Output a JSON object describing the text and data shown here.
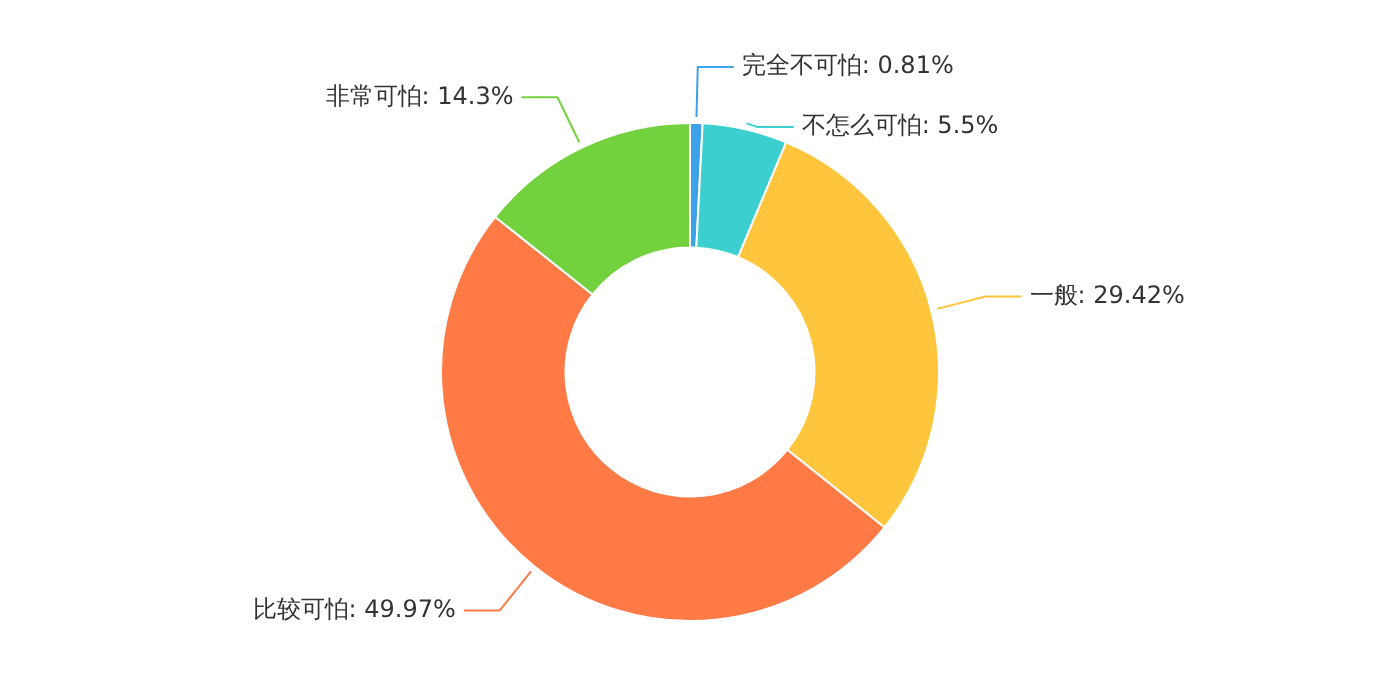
{
  "chart_data": {
    "type": "donut",
    "categories": [
      "完全不可怕",
      "不怎么可怕",
      "一般",
      "比较可怕",
      "非常可怕"
    ],
    "values": [
      0.81,
      5.5,
      29.42,
      49.97,
      14.3
    ],
    "value_labels": [
      "0.81%",
      "5.5%",
      "29.42%",
      "49.97%",
      "14.3%"
    ],
    "colors": [
      "#3ba1e8",
      "#3ccfcf",
      "#ffc53d",
      "#ff7a45",
      "#73d13d"
    ],
    "legend": false
  }
}
